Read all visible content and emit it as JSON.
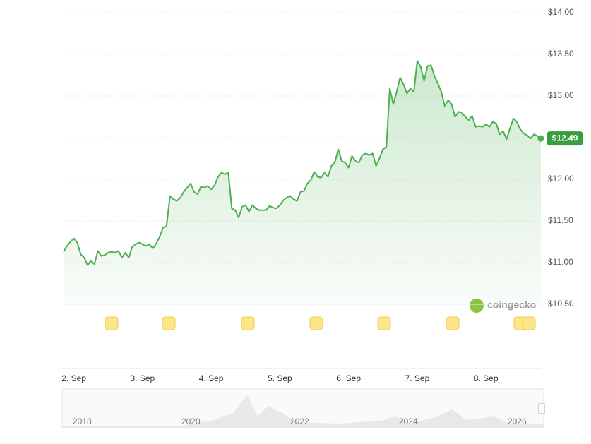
{
  "chart_data": {
    "type": "line",
    "categories": [
      null,
      null,
      null,
      "2. Sep",
      null,
      null,
      null,
      null,
      null,
      null,
      null,
      null,
      null,
      null,
      null,
      null,
      null,
      null,
      null,
      null,
      null,
      null,
      null,
      "3. Sep",
      null,
      null,
      null,
      null,
      null,
      null,
      null,
      null,
      null,
      null,
      null,
      null,
      null,
      null,
      null,
      null,
      null,
      null,
      null,
      "4. Sep",
      null,
      null,
      null,
      null,
      null,
      null,
      null,
      null,
      null,
      null,
      null,
      null,
      null,
      null,
      null,
      null,
      null,
      null,
      null,
      "5. Sep",
      null,
      null,
      null,
      null,
      null,
      null,
      null,
      null,
      null,
      null,
      null,
      null,
      null,
      null,
      null,
      null,
      null,
      null,
      null,
      "6. Sep",
      null,
      null,
      null,
      null,
      null,
      null,
      null,
      null,
      null,
      null,
      null,
      null,
      null,
      null,
      null,
      null,
      null,
      null,
      null,
      "7. Sep",
      null,
      null,
      null,
      null,
      null,
      null,
      null,
      null,
      null,
      null,
      null,
      null,
      null,
      null,
      null,
      null,
      null,
      null,
      null,
      "8. Sep",
      null,
      null,
      null,
      null,
      null,
      null,
      null,
      null,
      null,
      null,
      null,
      null,
      null,
      null,
      null,
      null
    ],
    "values": [
      11.13,
      11.2,
      11.25,
      11.29,
      11.24,
      11.1,
      11.06,
      10.97,
      11.02,
      10.98,
      11.14,
      11.08,
      11.09,
      11.12,
      11.13,
      11.12,
      11.14,
      11.06,
      11.12,
      11.06,
      11.19,
      11.22,
      11.24,
      11.22,
      11.2,
      11.22,
      11.17,
      11.23,
      11.31,
      11.42,
      11.44,
      11.8,
      11.76,
      11.74,
      11.78,
      11.85,
      11.9,
      11.95,
      11.85,
      11.82,
      11.91,
      11.9,
      11.92,
      11.88,
      11.93,
      12.03,
      12.08,
      12.06,
      12.08,
      11.65,
      11.63,
      11.54,
      11.67,
      11.69,
      11.61,
      11.69,
      11.65,
      11.63,
      11.63,
      11.63,
      11.68,
      11.66,
      11.65,
      11.69,
      11.75,
      11.78,
      11.8,
      11.76,
      11.74,
      11.85,
      11.86,
      11.95,
      11.99,
      12.09,
      12.03,
      12.02,
      12.08,
      12.03,
      12.16,
      12.2,
      12.36,
      12.22,
      12.2,
      12.14,
      12.28,
      12.22,
      12.2,
      12.29,
      12.31,
      12.29,
      12.31,
      12.16,
      12.25,
      12.36,
      12.39,
      13.09,
      12.9,
      13.05,
      13.22,
      13.14,
      13.03,
      13.09,
      13.05,
      13.42,
      13.35,
      13.18,
      13.36,
      13.37,
      13.24,
      13.15,
      13.05,
      12.88,
      12.95,
      12.9,
      12.75,
      12.81,
      12.8,
      12.75,
      12.71,
      12.76,
      12.63,
      12.64,
      12.63,
      12.66,
      12.63,
      12.69,
      12.67,
      12.54,
      12.58,
      12.48,
      12.61,
      12.73,
      12.69,
      12.6,
      12.55,
      12.53,
      12.49,
      12.54,
      12.52,
      12.49
    ],
    "color": "#4caf50",
    "ylim": [
      10.5,
      14
    ],
    "yticks": [
      {
        "value": 14,
        "label": "$14.00"
      },
      {
        "value": 13.5,
        "label": "$13.50"
      },
      {
        "value": 13,
        "label": "$13.00"
      },
      {
        "value": 12.5,
        "label": "$12.50"
      },
      {
        "value": 12,
        "label": "$12.00"
      },
      {
        "value": 11.5,
        "label": "$11.50"
      },
      {
        "value": 11,
        "label": "$11.00"
      },
      {
        "value": 10.5,
        "label": "$10.50"
      }
    ],
    "grid": true,
    "current_price_label": "$12.49",
    "watermark": "coingecko",
    "navigator_labels": [
      "2018",
      "2020",
      "2022",
      "2024",
      "2026"
    ]
  }
}
